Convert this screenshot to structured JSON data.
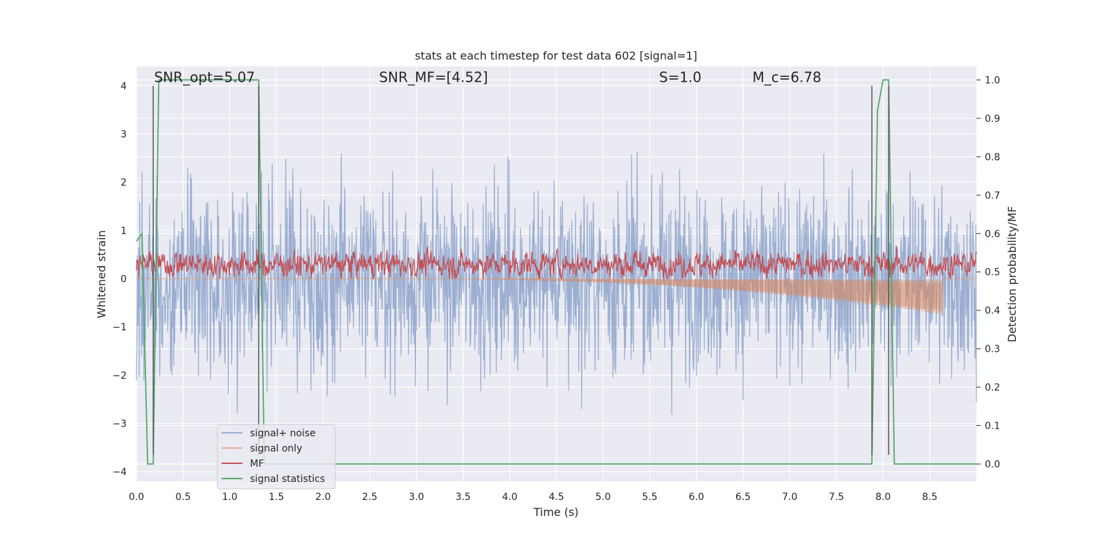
{
  "chart_data": {
    "type": "line",
    "title": "stats at each timestep for test data 602 [signal=1]",
    "xlabel": "Time (s)",
    "ylabel_left": "Whitened strain",
    "ylabel_right": "Detection probability/MF",
    "xlim": [
      0.0,
      9.0
    ],
    "ylim_left": [
      -4.2,
      4.4
    ],
    "ylim_right": [
      -0.045,
      1.035
    ],
    "x_ticks": [
      0.0,
      0.5,
      1.0,
      1.5,
      2.0,
      2.5,
      3.0,
      3.5,
      4.0,
      4.5,
      5.0,
      5.5,
      6.0,
      6.5,
      7.0,
      7.5,
      8.0,
      8.5
    ],
    "x_tick_labels": [
      "0.0",
      "0.5",
      "1.0",
      "1.5",
      "2.0",
      "2.5",
      "3.0",
      "3.5",
      "4.0",
      "4.5",
      "5.0",
      "5.5",
      "6.0",
      "6.5",
      "7.0",
      "7.5",
      "8.0",
      "8.5"
    ],
    "y_left_ticks": [
      -4,
      -3,
      -2,
      -1,
      0,
      1,
      2,
      3,
      4
    ],
    "y_left_tick_labels": [
      "−4",
      "−3",
      "−2",
      "−1",
      "0",
      "1",
      "2",
      "3",
      "4"
    ],
    "y_right_ticks": [
      0.0,
      0.1,
      0.2,
      0.3,
      0.4,
      0.5,
      0.6,
      0.7,
      0.8,
      0.9,
      1.0
    ],
    "y_right_tick_labels": [
      "0.0",
      "0.1",
      "0.2",
      "0.3",
      "0.4",
      "0.5",
      "0.6",
      "0.7",
      "0.8",
      "0.9",
      "1.0"
    ],
    "grid": true,
    "legend_placement": "lower-left",
    "annotations": [
      {
        "text": "SNR_opt=5.07",
        "x": 0.19,
        "y": 4.08
      },
      {
        "text": "SNR_MF=[4.52]",
        "x": 2.6,
        "y": 4.08
      },
      {
        "text": "S=1.0",
        "x": 5.6,
        "y": 4.08
      },
      {
        "text": "M_c=6.78",
        "x": 6.6,
        "y": 4.08
      }
    ],
    "vertical_lines": [
      {
        "x": 0.18,
        "y0": -3.65,
        "y1": 4.0
      },
      {
        "x": 1.31,
        "y0": -3.65,
        "y1": 4.0
      },
      {
        "x": 7.88,
        "y0": -3.65,
        "y1": 4.0
      },
      {
        "x": 8.06,
        "y0": -3.65,
        "y1": 4.0
      }
    ],
    "series": [
      {
        "name": "signal+ noise",
        "color": "#4c72b0",
        "axis": "left",
        "noise_std": 1.0,
        "range": [
          -3.65,
          3.65
        ]
      },
      {
        "name": "signal only",
        "color": "#dd8452",
        "axis": "left",
        "chirp_start": 3.0,
        "chirp_end": 8.64,
        "chirp_min": -0.75
      },
      {
        "name": "MF",
        "color": "#c44e52",
        "axis": "left",
        "baseline": 0.3,
        "range": [
          0.0,
          0.95
        ]
      },
      {
        "name": "signal statistics",
        "color": "#55a868",
        "axis": "right",
        "x": [
          0.0,
          0.06,
          0.12,
          0.18,
          0.24,
          1.31,
          1.37,
          1.43,
          7.88,
          7.94,
          8.0,
          8.06,
          8.12,
          8.18,
          9.0
        ],
        "y": [
          0.58,
          0.6,
          0.0,
          0.0,
          1.0,
          1.0,
          0.0,
          0.0,
          0.0,
          0.92,
          1.0,
          1.0,
          0.0,
          0.0,
          0.0
        ]
      }
    ]
  }
}
